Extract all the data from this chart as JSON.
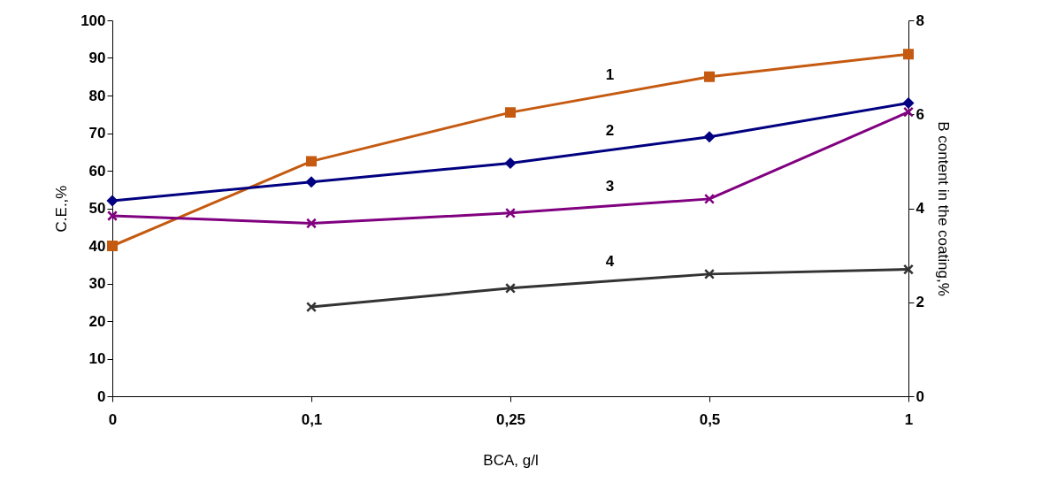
{
  "chart_data": {
    "type": "line",
    "xlabel": "BCA, g/l",
    "ylabel": "C.E.,%",
    "y2label": "B content in the coating,%",
    "categories": [
      "0",
      "0,1",
      "0,25",
      "0,5",
      "1"
    ],
    "series": [
      {
        "name": "1",
        "color": "#c55a11",
        "marker": "square",
        "values": [
          40,
          62.5,
          75.5,
          85,
          91
        ]
      },
      {
        "name": "2",
        "color": "#000080",
        "marker": "diamond",
        "values": [
          52,
          57,
          62,
          69,
          78
        ]
      },
      {
        "name": "3",
        "color": "#800080",
        "marker": "cross",
        "axis": "y2",
        "values": [
          3.84,
          3.68,
          3.9,
          4.2,
          6.05
        ]
      },
      {
        "name": "4",
        "color": "#333333",
        "marker": "cross",
        "axis": "y2",
        "values": [
          null,
          1.9,
          2.3,
          2.6,
          2.7
        ]
      }
    ],
    "ylim": [
      0,
      100
    ],
    "yticks": [
      0,
      10,
      20,
      30,
      40,
      50,
      60,
      70,
      80,
      90,
      100
    ],
    "y2lim": [
      0,
      8
    ],
    "y2ticks": [
      0,
      2,
      4,
      6,
      8
    ],
    "grid": false,
    "legend": false
  }
}
